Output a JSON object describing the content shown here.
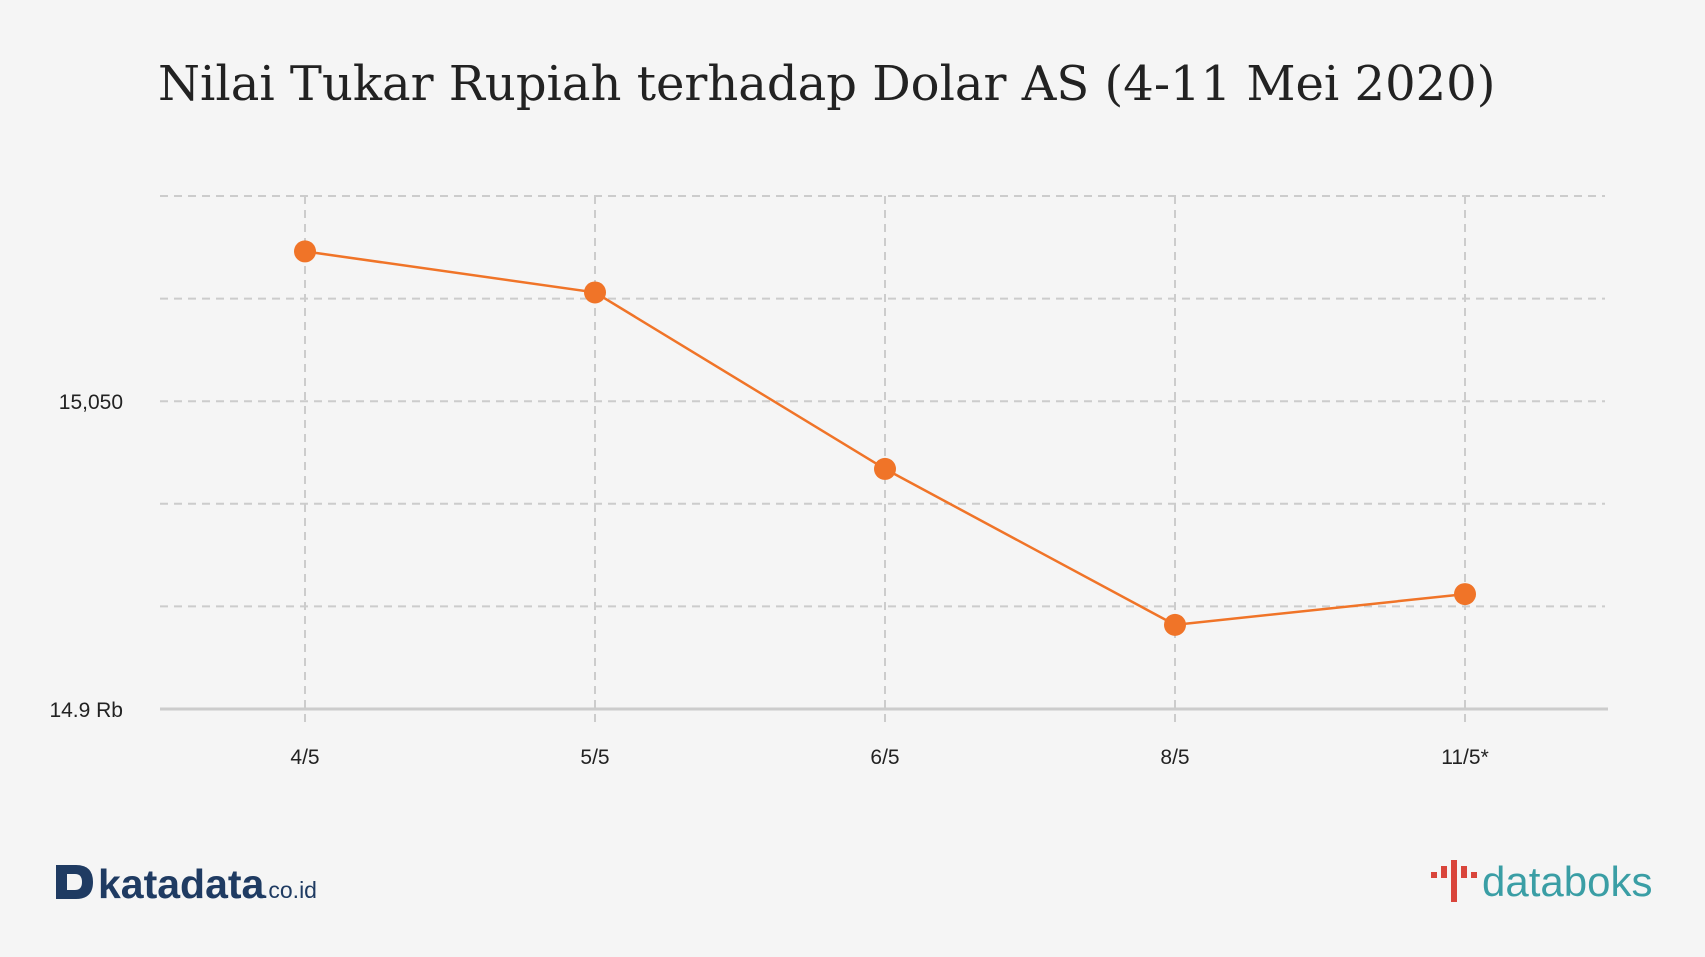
{
  "chart_data": {
    "type": "line",
    "title": "Nilai Tukar Rupiah terhadap Dolar AS (4-11 Mei 2020)",
    "xlabel": "",
    "ylabel": "",
    "categories": [
      "4/5",
      "5/5",
      "6/5",
      "8/5",
      "11/5*"
    ],
    "series": [
      {
        "values": [
          15123,
          15103,
          15017,
          14941,
          14956
        ]
      }
    ],
    "ylim": [
      14900,
      15150
    ],
    "yticks": [
      14900,
      14950,
      15000,
      15050,
      15100,
      15150
    ],
    "ytick_labels": {
      "14900": "14.9 Rb",
      "15050": "15,050"
    },
    "grid": true,
    "colors": {
      "series": "#f07428",
      "grid": "#cccccc",
      "axis": "#cccccc",
      "text": "#222222"
    }
  },
  "branding": {
    "left_logo_text": "katadata",
    "left_logo_suffix": ".co.id",
    "right_logo_text": "databoks",
    "colors": {
      "katadata": "#1f3b62",
      "databoks": "#3a9ea5",
      "databoks_mark": "#d9453b"
    }
  }
}
